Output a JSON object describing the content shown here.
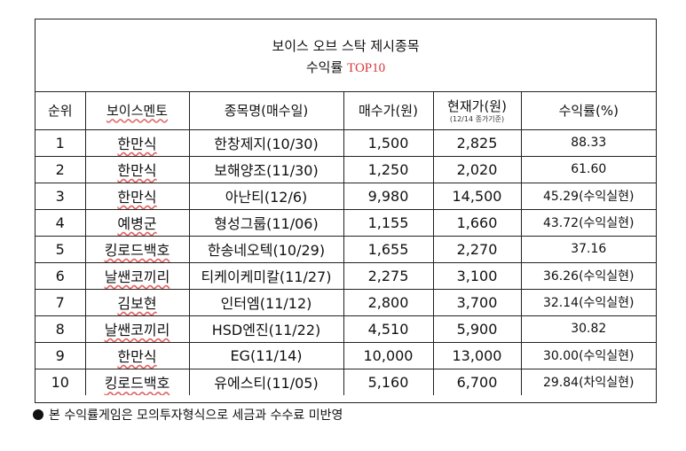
{
  "title": {
    "line1": "보이스 오브 스탁 제시종목",
    "line2_prefix": "수익률 ",
    "line2_accent": "TOP10",
    "accent_color": "#d9363e"
  },
  "table": {
    "headers": {
      "rank": "순위",
      "voice": "보이스멘토",
      "stock": "종목명(매수일)",
      "buy": "매수가(원)",
      "current": "현재가(원)",
      "current_sub": "(12/14 종가기준)",
      "rate": "수익률(%)"
    },
    "rows": [
      {
        "rank": "1",
        "voice": "한만식",
        "stock": "한창제지(10/30)",
        "buy": "1,500",
        "current": "2,825",
        "rate": "88.33"
      },
      {
        "rank": "2",
        "voice": "한만식",
        "stock": "보해양조(11/30)",
        "buy": "1,250",
        "current": "2,020",
        "rate": "61.60"
      },
      {
        "rank": "3",
        "voice": "한만식",
        "stock": "아난티(12/6)",
        "buy": "9,980",
        "current": "14,500",
        "rate": "45.29(수익실현)"
      },
      {
        "rank": "4",
        "voice": "예병군",
        "stock": "형성그룹(11/06)",
        "buy": "1,155",
        "current": "1,660",
        "rate": "43.72(수익실현)"
      },
      {
        "rank": "5",
        "voice": "킹로드백호",
        "stock": "한송네오텍(10/29)",
        "buy": "1,655",
        "current": "2,270",
        "rate": "37.16"
      },
      {
        "rank": "6",
        "voice": "날쌘코끼리",
        "stock": "티케이케미칼(11/27)",
        "buy": "2,275",
        "current": "3,100",
        "rate": "36.26(수익실현)"
      },
      {
        "rank": "7",
        "voice": "김보현",
        "stock": "인터엠(11/12)",
        "buy": "2,800",
        "current": "3,700",
        "rate": "32.14(수익실현)"
      },
      {
        "rank": "8",
        "voice": "날쌘코끼리",
        "stock": "HSD엔진(11/22)",
        "buy": "4,510",
        "current": "5,900",
        "rate": "30.82"
      },
      {
        "rank": "9",
        "voice": "한만식",
        "stock": "EG(11/14)",
        "buy": "10,000",
        "current": "13,000",
        "rate": "30.00(수익실현)"
      },
      {
        "rank": "10",
        "voice": "킹로드백호",
        "stock": "유에스티(11/05)",
        "buy": "5,160",
        "current": "6,700",
        "rate": "29.84(차익실현)"
      }
    ]
  },
  "footer": {
    "note": "본 수익률게임은 모의투자형식으로 세금과 수수료 미반영"
  }
}
